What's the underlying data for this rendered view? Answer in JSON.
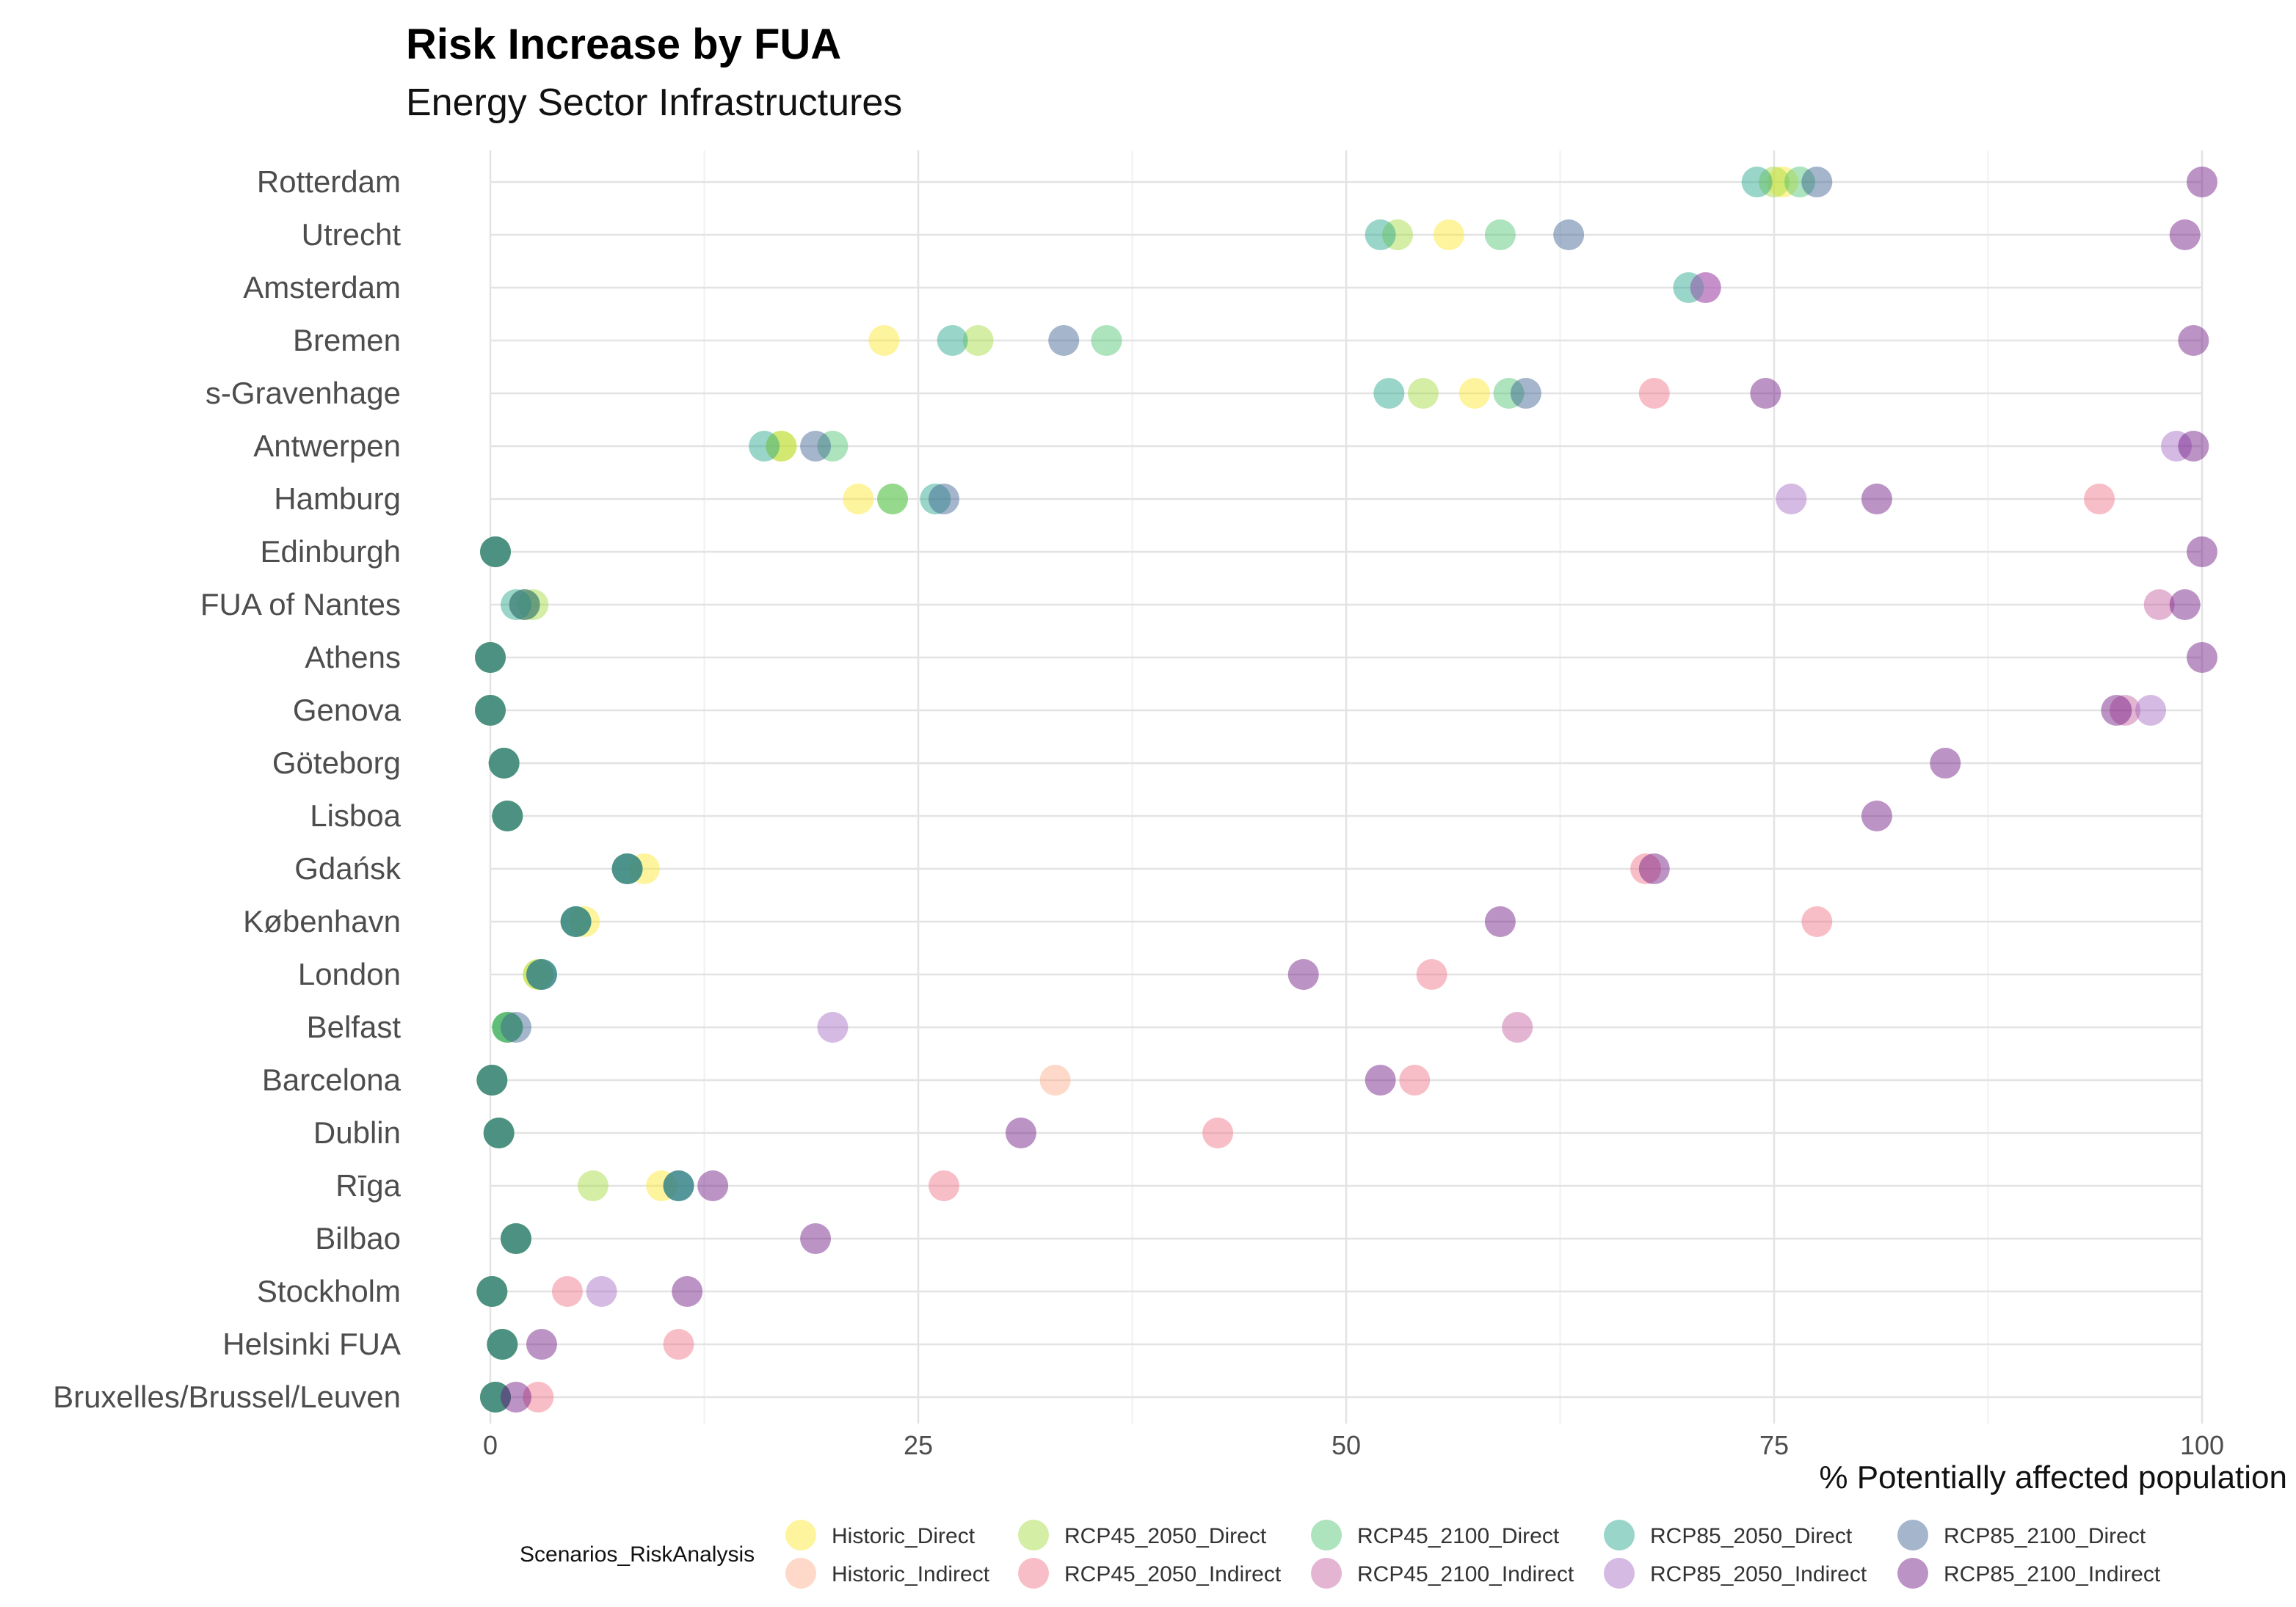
{
  "chart_data": {
    "type": "scatter",
    "title": "Risk Increase by FUA",
    "subtitle": "Energy Sector Infrastructures",
    "xlabel": "% Potentially affected population",
    "ylabel": "",
    "xlim": [
      0,
      100
    ],
    "xticks": [
      0,
      25,
      50,
      75,
      100
    ],
    "grid": true,
    "legend": {
      "title": "Scenarios_RiskAnalysis",
      "position": "bottom",
      "entries": [
        {
          "name": "Historic_Direct",
          "color": "#FDE725"
        },
        {
          "name": "Historic_Indirect",
          "color": "#FCA985"
        },
        {
          "name": "RCP45_2050_Direct",
          "color": "#A0DA39"
        },
        {
          "name": "RCP45_2050_Indirect",
          "color": "#EF6F82"
        },
        {
          "name": "RCP45_2100_Direct",
          "color": "#4AC16D"
        },
        {
          "name": "RCP45_2100_Indirect",
          "color": "#C05B9E"
        },
        {
          "name": "RCP85_2050_Direct",
          "color": "#1FA187"
        },
        {
          "name": "RCP85_2050_Indirect",
          "color": "#A265C2"
        },
        {
          "name": "RCP85_2100_Direct",
          "color": "#365C8D"
        },
        {
          "name": "RCP85_2100_Indirect",
          "color": "#6A0F7E"
        }
      ]
    },
    "categories": [
      "Rotterdam",
      "Utrecht",
      "Amsterdam",
      "Bremen",
      "s-Gravenhage",
      "Antwerpen",
      "Hamburg",
      "Edinburgh",
      "FUA of Nantes",
      "Athens",
      "Genova",
      "Göteborg",
      "Lisboa",
      "Gdańsk",
      "København",
      "London",
      "Belfast",
      "Barcelona",
      "Dublin",
      "Rīga",
      "Bilbao",
      "Stockholm",
      "Helsinki FUA",
      "Bruxelles/Brussel/Leuven"
    ],
    "series": [
      {
        "name": "Historic_Direct",
        "values": [
          75.5,
          56,
          null,
          23,
          57.5,
          17,
          21.5,
          0.3,
          2,
          0,
          0,
          0.8,
          1,
          9,
          5.5,
          2.8,
          1,
          0.1,
          0.5,
          10,
          1.5,
          0.1,
          0.7,
          0.3
        ]
      },
      {
        "name": "Historic_Indirect",
        "values": [
          null,
          null,
          null,
          null,
          null,
          null,
          null,
          null,
          null,
          null,
          null,
          null,
          null,
          null,
          null,
          null,
          null,
          33,
          null,
          null,
          null,
          null,
          null,
          null
        ]
      },
      {
        "name": "RCP45_2050_Direct",
        "values": [
          75,
          53,
          null,
          28.5,
          54.5,
          17,
          23.5,
          0.3,
          2.5,
          0,
          0,
          0.8,
          1,
          8,
          5,
          2.8,
          1,
          0.1,
          0.5,
          6,
          1.5,
          0.1,
          0.7,
          0.3
        ]
      },
      {
        "name": "RCP45_2050_Indirect",
        "values": [
          null,
          null,
          null,
          null,
          68,
          null,
          94,
          null,
          null,
          null,
          null,
          null,
          null,
          67.5,
          77.5,
          55,
          null,
          54,
          42.5,
          26.5,
          null,
          4.5,
          11,
          2.8
        ]
      },
      {
        "name": "RCP45_2100_Direct",
        "values": [
          76.5,
          59,
          null,
          36,
          59.5,
          20,
          23.5,
          0.3,
          2,
          0,
          0,
          0.8,
          1,
          8,
          5,
          3,
          1,
          0.1,
          0.5,
          11,
          1.5,
          0.1,
          0.7,
          0.3
        ]
      },
      {
        "name": "RCP45_2100_Indirect",
        "values": [
          null,
          null,
          71,
          null,
          null,
          null,
          null,
          null,
          97.5,
          null,
          95.5,
          null,
          null,
          null,
          null,
          null,
          60,
          null,
          null,
          null,
          null,
          null,
          null,
          null
        ]
      },
      {
        "name": "RCP85_2050_Direct",
        "values": [
          74,
          52,
          70,
          27,
          52.5,
          16,
          26,
          0.3,
          1.5,
          0,
          0,
          0.8,
          1,
          8,
          5,
          3,
          1,
          0.1,
          0.5,
          11,
          1.5,
          0.1,
          0.7,
          0.3
        ]
      },
      {
        "name": "RCP85_2050_Indirect",
        "values": [
          null,
          null,
          71,
          null,
          null,
          98.5,
          76,
          null,
          null,
          null,
          97,
          null,
          null,
          null,
          null,
          null,
          20,
          null,
          null,
          null,
          null,
          6.5,
          null,
          null
        ]
      },
      {
        "name": "RCP85_2100_Direct",
        "values": [
          77.5,
          63,
          null,
          33.5,
          60.5,
          19,
          26.5,
          0.3,
          2,
          0,
          0,
          0.8,
          1,
          8,
          5,
          3,
          1.5,
          0.1,
          0.5,
          11,
          1.5,
          0.1,
          0.7,
          0.3
        ]
      },
      {
        "name": "RCP85_2100_Indirect",
        "values": [
          100,
          99,
          null,
          99.5,
          74.5,
          99.5,
          81,
          100,
          99,
          100,
          95,
          85,
          81,
          68,
          59,
          47.5,
          null,
          52,
          31,
          13,
          19,
          11.5,
          3,
          1.5
        ]
      }
    ]
  }
}
